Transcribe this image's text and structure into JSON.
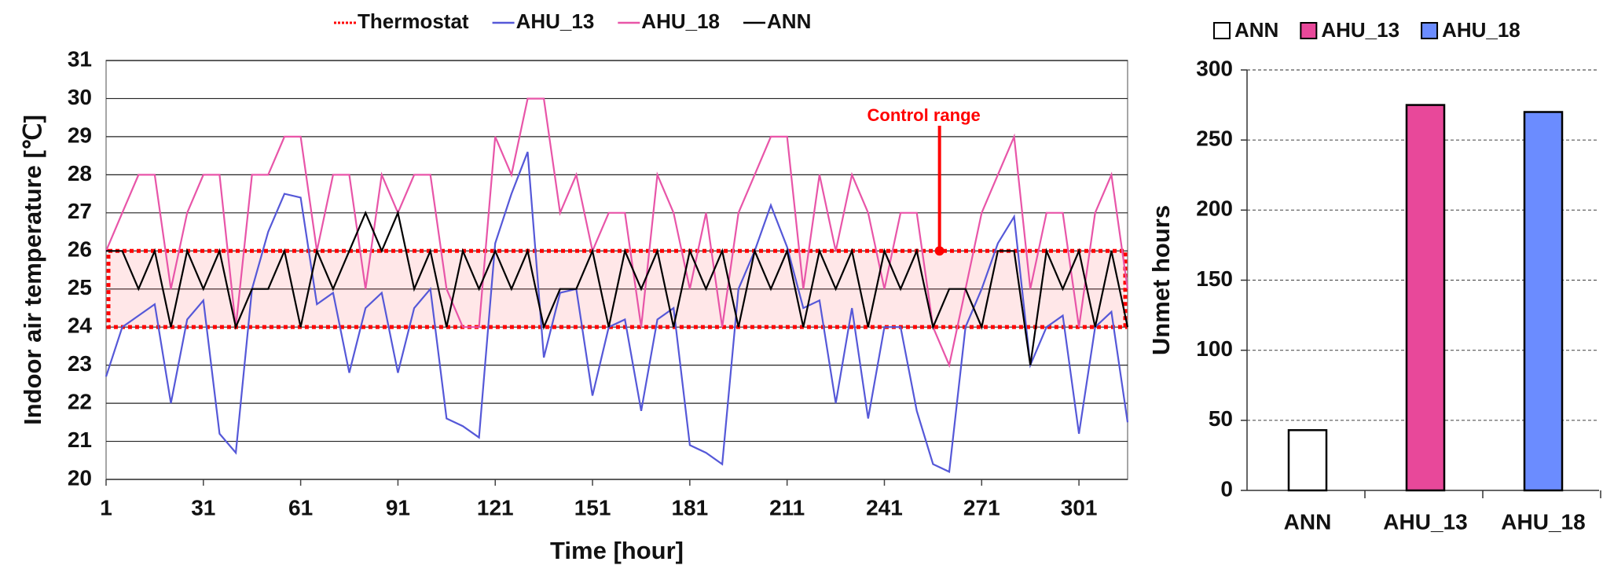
{
  "chart_data": [
    {
      "type": "line",
      "x_label": "Time [hour]",
      "y_label": "Indoor air temperature [℃]",
      "annotation": "Control range",
      "band": {
        "name": "Thermostat",
        "color": "#ff0000",
        "range": [
          24,
          26
        ]
      },
      "x": [
        1,
        6,
        11,
        16,
        21,
        26,
        31,
        36,
        41,
        46,
        51,
        56,
        61,
        66,
        71,
        76,
        81,
        86,
        91,
        96,
        101,
        106,
        111,
        116,
        121,
        126,
        131,
        136,
        141,
        146,
        151,
        156,
        161,
        166,
        171,
        176,
        181,
        186,
        191,
        196,
        201,
        206,
        211,
        216,
        221,
        226,
        231,
        236,
        241,
        246,
        251,
        256,
        261,
        266,
        271,
        276,
        281,
        286,
        291,
        296,
        301,
        306,
        311,
        316
      ],
      "series": [
        {
          "name": "AHU_13",
          "color": "#5558d8",
          "values": [
            22.7,
            24,
            24.3,
            24.6,
            22,
            24.2,
            24.7,
            21.2,
            20.7,
            25,
            26.5,
            27.5,
            27.4,
            24.6,
            24.9,
            22.8,
            24.5,
            24.9,
            22.8,
            24.5,
            25,
            21.6,
            21.4,
            21.1,
            26.2,
            27.5,
            28.6,
            23.2,
            24.9,
            25,
            22.2,
            24,
            24.2,
            21.8,
            24.2,
            24.5,
            20.9,
            20.7,
            20.4,
            25,
            26,
            27.2,
            26.1,
            24.5,
            24.7,
            22,
            24.5,
            21.6,
            24,
            24,
            21.8,
            20.4,
            20.2,
            24,
            25,
            26.2,
            26.9,
            23,
            24,
            24.3,
            21.2,
            24,
            24.4,
            21.5
          ]
        },
        {
          "name": "AHU_18",
          "color": "#e855a8",
          "values": [
            26,
            27,
            28,
            28,
            25,
            27,
            28,
            28,
            24,
            28,
            28,
            29,
            29,
            26,
            28,
            28,
            25,
            28,
            27,
            28,
            28,
            25,
            24,
            24,
            29,
            28,
            30,
            30,
            27,
            28,
            26,
            27,
            27,
            24,
            28,
            27,
            25,
            27,
            24,
            27,
            28,
            29,
            29,
            25,
            28,
            26,
            28,
            27,
            25,
            27,
            27,
            24,
            23,
            25,
            27,
            28,
            29,
            25,
            27,
            27,
            24,
            27,
            28,
            25
          ]
        },
        {
          "name": "ANN",
          "color": "#000000",
          "values": [
            26,
            26,
            25,
            26,
            24,
            26,
            25,
            26,
            24,
            25,
            25,
            26,
            24,
            26,
            25,
            26,
            27,
            26,
            27,
            25,
            26,
            24,
            26,
            25,
            26,
            25,
            26,
            24,
            25,
            25,
            26,
            24,
            26,
            25,
            26,
            24,
            26,
            25,
            26,
            24,
            26,
            25,
            26,
            24,
            26,
            25,
            26,
            24,
            26,
            25,
            26,
            24,
            25,
            25,
            24,
            26,
            26,
            23,
            26,
            25,
            26,
            24,
            26,
            24
          ]
        }
      ],
      "xlim": [
        1,
        316
      ],
      "xticks": [
        1,
        31,
        61,
        91,
        121,
        151,
        181,
        211,
        241,
        271,
        301
      ],
      "ylim": [
        20,
        31
      ],
      "yticks": [
        20,
        21,
        22,
        23,
        24,
        25,
        26,
        27,
        28,
        29,
        30,
        31
      ],
      "grid": true
    },
    {
      "type": "bar",
      "y_label": "Unmet hours",
      "categories": [
        "ANN",
        "AHU_13",
        "AHU_18"
      ],
      "values": [
        43,
        275,
        270
      ],
      "colors": [
        "#ffffff",
        "#e8489a",
        "#6b8cff"
      ],
      "ylim": [
        0,
        300
      ],
      "yticks": [
        0,
        50,
        100,
        150,
        200,
        250,
        300
      ],
      "grid": true
    }
  ]
}
